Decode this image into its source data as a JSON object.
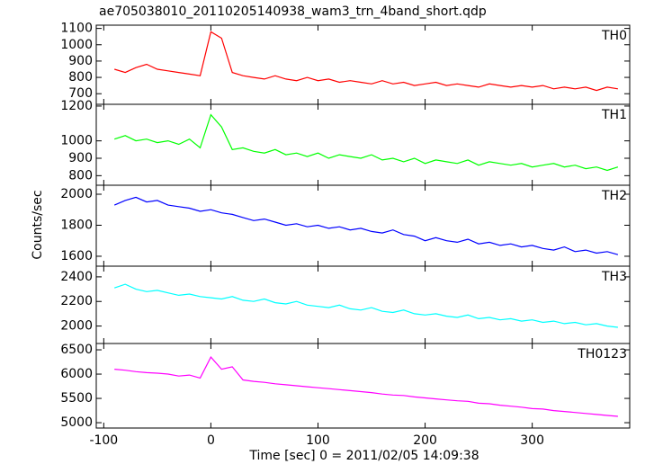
{
  "title": "ae705038010_20110205140938_wam3_trn_4band_short.qdp",
  "y_label": "Counts/sec",
  "x_label": "Time [sec] 0 = 2011/02/05 14:09:38",
  "chart_data": [
    {
      "type": "line",
      "x": [
        -90,
        -80,
        -70,
        -60,
        -50,
        -40,
        -30,
        -20,
        -10,
        0,
        10,
        20,
        30,
        40,
        50,
        60,
        70,
        80,
        90,
        100,
        110,
        120,
        130,
        140,
        150,
        160,
        170,
        180,
        190,
        200,
        210,
        220,
        230,
        240,
        250,
        260,
        270,
        280,
        290,
        300,
        310,
        320,
        330,
        340,
        350,
        360,
        370,
        380
      ],
      "series": [
        {
          "name": "TH0",
          "color": "#ff0000",
          "values": [
            850,
            830,
            860,
            880,
            850,
            840,
            830,
            820,
            810,
            1080,
            1040,
            830,
            810,
            800,
            790,
            810,
            790,
            780,
            800,
            780,
            790,
            770,
            780,
            770,
            760,
            780,
            760,
            770,
            750,
            760,
            770,
            750,
            760,
            750,
            740,
            760,
            750,
            740,
            750,
            740,
            750,
            730,
            740,
            730,
            740,
            720,
            740,
            730
          ]
        }
      ],
      "xlim": [
        -107,
        391
      ],
      "xticks": [
        -100,
        0,
        100,
        200,
        300
      ],
      "ylim": [
        635,
        1120
      ],
      "yticks": [
        700,
        800,
        900,
        1000,
        1100
      ]
    },
    {
      "type": "line",
      "x": [
        -90,
        -80,
        -70,
        -60,
        -50,
        -40,
        -30,
        -20,
        -10,
        0,
        10,
        20,
        30,
        40,
        50,
        60,
        70,
        80,
        90,
        100,
        110,
        120,
        130,
        140,
        150,
        160,
        170,
        180,
        190,
        200,
        210,
        220,
        230,
        240,
        250,
        260,
        270,
        280,
        290,
        300,
        310,
        320,
        330,
        340,
        350,
        360,
        370,
        380
      ],
      "series": [
        {
          "name": "TH1",
          "color": "#00ff00",
          "values": [
            1010,
            1030,
            1000,
            1010,
            990,
            1000,
            980,
            1010,
            960,
            1150,
            1080,
            950,
            960,
            940,
            930,
            950,
            920,
            930,
            910,
            930,
            900,
            920,
            910,
            900,
            920,
            890,
            900,
            880,
            900,
            870,
            890,
            880,
            870,
            890,
            860,
            880,
            870,
            860,
            870,
            850,
            860,
            870,
            850,
            860,
            840,
            850,
            830,
            850
          ]
        }
      ],
      "xlim": [
        -107,
        391
      ],
      "xticks": [
        -100,
        0,
        100,
        200,
        300
      ],
      "ylim": [
        745,
        1210
      ],
      "yticks": [
        800,
        900,
        1000,
        1200
      ]
    },
    {
      "type": "line",
      "x": [
        -90,
        -80,
        -70,
        -60,
        -50,
        -40,
        -30,
        -20,
        -10,
        0,
        10,
        20,
        30,
        40,
        50,
        60,
        70,
        80,
        90,
        100,
        110,
        120,
        130,
        140,
        150,
        160,
        170,
        180,
        190,
        200,
        210,
        220,
        230,
        240,
        250,
        260,
        270,
        280,
        290,
        300,
        310,
        320,
        330,
        340,
        350,
        360,
        370,
        380
      ],
      "series": [
        {
          "name": "TH2",
          "color": "#0000ff",
          "values": [
            1930,
            1960,
            1980,
            1950,
            1960,
            1930,
            1920,
            1910,
            1890,
            1900,
            1880,
            1870,
            1850,
            1830,
            1840,
            1820,
            1800,
            1810,
            1790,
            1800,
            1780,
            1790,
            1770,
            1780,
            1760,
            1750,
            1770,
            1740,
            1730,
            1700,
            1720,
            1700,
            1690,
            1710,
            1680,
            1690,
            1670,
            1680,
            1660,
            1670,
            1650,
            1640,
            1660,
            1630,
            1640,
            1620,
            1630,
            1610
          ]
        }
      ],
      "xlim": [
        -107,
        391
      ],
      "xticks": [
        -100,
        0,
        100,
        200,
        300
      ],
      "ylim": [
        1536,
        2058
      ],
      "yticks": [
        1600,
        1800,
        2000
      ]
    },
    {
      "type": "line",
      "x": [
        -90,
        -80,
        -70,
        -60,
        -50,
        -40,
        -30,
        -20,
        -10,
        0,
        10,
        20,
        30,
        40,
        50,
        60,
        70,
        80,
        90,
        100,
        110,
        120,
        130,
        140,
        150,
        160,
        170,
        180,
        190,
        200,
        210,
        220,
        230,
        240,
        250,
        260,
        270,
        280,
        290,
        300,
        310,
        320,
        330,
        340,
        350,
        360,
        370,
        380
      ],
      "series": [
        {
          "name": "TH3",
          "color": "#00ffff",
          "values": [
            2310,
            2340,
            2300,
            2280,
            2290,
            2270,
            2250,
            2260,
            2240,
            2230,
            2220,
            2240,
            2210,
            2200,
            2220,
            2190,
            2180,
            2200,
            2170,
            2160,
            2150,
            2170,
            2140,
            2130,
            2150,
            2120,
            2110,
            2130,
            2100,
            2090,
            2100,
            2080,
            2070,
            2090,
            2060,
            2070,
            2050,
            2060,
            2040,
            2050,
            2030,
            2040,
            2020,
            2030,
            2010,
            2020,
            2000,
            1990
          ]
        }
      ],
      "xlim": [
        -107,
        391
      ],
      "xticks": [
        -100,
        0,
        100,
        200,
        300
      ],
      "ylim": [
        1858,
        2487
      ],
      "yticks": [
        2000,
        2200,
        2400
      ]
    },
    {
      "type": "line",
      "x": [
        -90,
        -80,
        -70,
        -60,
        -50,
        -40,
        -30,
        -20,
        -10,
        0,
        10,
        20,
        30,
        40,
        50,
        60,
        70,
        80,
        90,
        100,
        110,
        120,
        130,
        140,
        150,
        160,
        170,
        180,
        190,
        200,
        210,
        220,
        230,
        240,
        250,
        260,
        270,
        280,
        290,
        300,
        310,
        320,
        330,
        340,
        350,
        360,
        370,
        380
      ],
      "series": [
        {
          "name": "TH0123",
          "color": "#ff00ff",
          "values": [
            6100,
            6080,
            6050,
            6030,
            6020,
            6000,
            5960,
            5980,
            5920,
            6350,
            6100,
            6150,
            5880,
            5850,
            5830,
            5800,
            5780,
            5760,
            5740,
            5720,
            5700,
            5680,
            5660,
            5640,
            5620,
            5590,
            5570,
            5560,
            5530,
            5510,
            5490,
            5470,
            5450,
            5440,
            5400,
            5390,
            5360,
            5340,
            5320,
            5290,
            5280,
            5250,
            5230,
            5210,
            5190,
            5170,
            5150,
            5130
          ]
        }
      ],
      "xlim": [
        -107,
        391
      ],
      "xticks": [
        -100,
        0,
        100,
        200,
        300
      ],
      "ylim": [
        4890,
        6630
      ],
      "yticks": [
        5000,
        5500,
        6000,
        6500
      ]
    }
  ]
}
